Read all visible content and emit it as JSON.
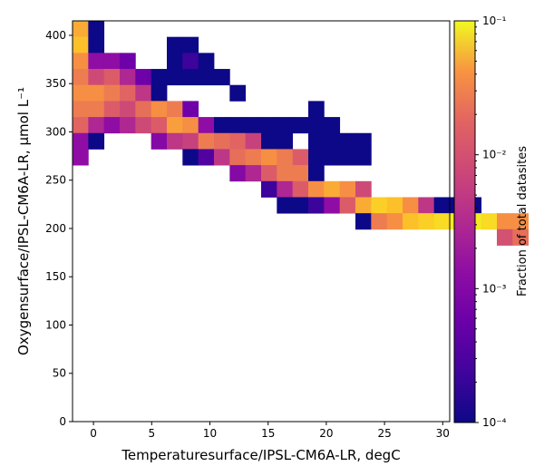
{
  "chart_data": {
    "type": "heatmap",
    "xlabel": "Temperaturesurface/IPSL-CM6A-LR,  degC",
    "ylabel": "Oxygensurface/IPSL-CM6A-LR,  μmol L⁻¹",
    "xlim": [
      -1.8,
      30.6
    ],
    "ylim": [
      0,
      415
    ],
    "x_ticks": [
      0,
      5,
      10,
      15,
      20,
      25,
      30
    ],
    "y_ticks": [
      0,
      50,
      100,
      150,
      200,
      250,
      300,
      350,
      400
    ],
    "x_tick_labels": [
      "0",
      "5",
      "10",
      "15",
      "20",
      "25",
      "30"
    ],
    "y_tick_labels": [
      "0",
      "50",
      "100",
      "150",
      "200",
      "250",
      "300",
      "350",
      "400"
    ],
    "bin_width_x": 1.35,
    "bin_width_y": 16.6,
    "x_origin": -1.8,
    "y_origin": 0,
    "colorbar": {
      "label": "Fraction of total datasites",
      "scale": "log",
      "range": [
        0.0001,
        0.1
      ],
      "tick_labels": [
        "10⁻⁴",
        "10⁻³",
        "10⁻²",
        "10⁻¹"
      ],
      "colormap": "plasma"
    },
    "rows": [
      {
        "ybin": 24,
        "cells": [
          [
            0,
            0.03
          ],
          [
            1,
            0.0001
          ]
        ]
      },
      {
        "ybin": 23,
        "cells": [
          [
            0,
            0.04
          ],
          [
            1,
            0.0001
          ],
          [
            6,
            0.0001
          ],
          [
            7,
            0.0001
          ]
        ]
      },
      {
        "ybin": 22,
        "cells": [
          [
            0,
            0.02
          ],
          [
            1,
            0.001
          ],
          [
            2,
            0.001
          ],
          [
            3,
            0.0005
          ],
          [
            6,
            0.0001
          ],
          [
            7,
            0.0002
          ],
          [
            8,
            0.0001
          ]
        ]
      },
      {
        "ybin": 21,
        "cells": [
          [
            0,
            0.015
          ],
          [
            1,
            0.005
          ],
          [
            2,
            0.008
          ],
          [
            3,
            0.002
          ],
          [
            4,
            0.0005
          ],
          [
            5,
            0.0001
          ],
          [
            6,
            0.0001
          ],
          [
            7,
            0.0001
          ],
          [
            8,
            0.0001
          ],
          [
            9,
            0.0001
          ]
        ]
      },
      {
        "ybin": 20,
        "cells": [
          [
            0,
            0.02
          ],
          [
            1,
            0.02
          ],
          [
            2,
            0.015
          ],
          [
            3,
            0.01
          ],
          [
            4,
            0.003
          ],
          [
            5,
            0.0001
          ],
          [
            10,
            0.0001
          ]
        ]
      },
      {
        "ybin": 19,
        "cells": [
          [
            0,
            0.015
          ],
          [
            1,
            0.015
          ],
          [
            2,
            0.008
          ],
          [
            3,
            0.005
          ],
          [
            4,
            0.012
          ],
          [
            5,
            0.02
          ],
          [
            6,
            0.015
          ],
          [
            7,
            0.0005
          ],
          [
            15,
            0.0001
          ]
        ]
      },
      {
        "ybin": 18,
        "cells": [
          [
            0,
            0.01
          ],
          [
            1,
            0.002
          ],
          [
            2,
            0.001
          ],
          [
            3,
            0.002
          ],
          [
            4,
            0.005
          ],
          [
            5,
            0.008
          ],
          [
            6,
            0.025
          ],
          [
            7,
            0.02
          ],
          [
            8,
            0.001
          ],
          [
            9,
            0.0001
          ],
          [
            10,
            0.0001
          ],
          [
            11,
            0.0001
          ],
          [
            12,
            0.0001
          ],
          [
            13,
            0.0001
          ],
          [
            14,
            0.0001
          ],
          [
            15,
            0.0001
          ],
          [
            16,
            0.0001
          ]
        ]
      },
      {
        "ybin": 17,
        "cells": [
          [
            0,
            0.001
          ],
          [
            1,
            0.0001
          ],
          [
            5,
            0.0008
          ],
          [
            6,
            0.003
          ],
          [
            7,
            0.004
          ],
          [
            8,
            0.015
          ],
          [
            9,
            0.012
          ],
          [
            10,
            0.01
          ],
          [
            11,
            0.004
          ],
          [
            12,
            0.0001
          ],
          [
            13,
            0.0001
          ],
          [
            15,
            0.0001
          ],
          [
            16,
            0.0001
          ],
          [
            17,
            0.0001
          ],
          [
            18,
            0.0001
          ]
        ]
      },
      {
        "ybin": 16,
        "cells": [
          [
            0,
            0.001
          ],
          [
            7,
            0.0001
          ],
          [
            8,
            0.0003
          ],
          [
            9,
            0.003
          ],
          [
            10,
            0.012
          ],
          [
            11,
            0.015
          ],
          [
            12,
            0.02
          ],
          [
            13,
            0.015
          ],
          [
            14,
            0.008
          ],
          [
            15,
            0.0001
          ],
          [
            16,
            0.0001
          ],
          [
            17,
            0.0001
          ],
          [
            18,
            0.0001
          ]
        ]
      },
      {
        "ybin": 15,
        "cells": [
          [
            10,
            0.0008
          ],
          [
            11,
            0.002
          ],
          [
            12,
            0.008
          ],
          [
            13,
            0.015
          ],
          [
            14,
            0.015
          ],
          [
            15,
            0.0001
          ]
        ]
      },
      {
        "ybin": 14,
        "cells": [
          [
            12,
            0.0002
          ],
          [
            13,
            0.002
          ],
          [
            14,
            0.008
          ],
          [
            15,
            0.02
          ],
          [
            16,
            0.03
          ],
          [
            17,
            0.02
          ],
          [
            18,
            0.005
          ]
        ]
      },
      {
        "ybin": 13,
        "cells": [
          [
            13,
            0.0001
          ],
          [
            14,
            0.0001
          ],
          [
            15,
            0.0002
          ],
          [
            16,
            0.001
          ],
          [
            17,
            0.008
          ],
          [
            18,
            0.03
          ],
          [
            19,
            0.05
          ],
          [
            20,
            0.04
          ],
          [
            21,
            0.02
          ],
          [
            22,
            0.003
          ],
          [
            23,
            0.0001
          ],
          [
            24,
            0.0001
          ],
          [
            25,
            0.0001
          ]
        ]
      },
      {
        "ybin": 12,
        "cells": [
          [
            18,
            0.0001
          ],
          [
            19,
            0.015
          ],
          [
            20,
            0.02
          ],
          [
            21,
            0.04
          ],
          [
            22,
            0.05
          ],
          [
            23,
            0.06
          ],
          [
            24,
            0.08
          ],
          [
            25,
            0.08
          ],
          [
            26,
            0.06
          ],
          [
            27,
            0.02
          ],
          [
            28,
            0.02
          ]
        ]
      },
      {
        "ybin": 11,
        "cells": [
          [
            27,
            0.006
          ],
          [
            28,
            0.012
          ]
        ]
      }
    ]
  }
}
